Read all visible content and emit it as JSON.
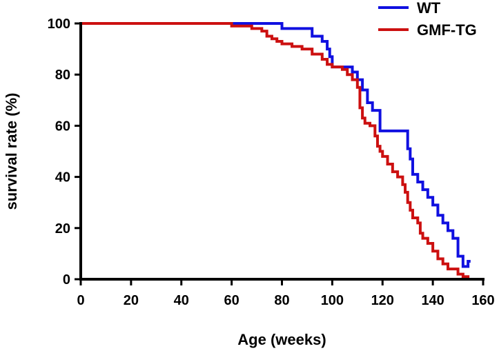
{
  "chart_data": {
    "type": "line",
    "subtype": "step",
    "xlabel": "Age (weeks)",
    "ylabel": "survival rate (%)",
    "xlim": [
      0,
      160
    ],
    "ylim": [
      0,
      100
    ],
    "xticks": [
      0,
      20,
      40,
      60,
      80,
      100,
      120,
      140,
      160
    ],
    "yticks": [
      0,
      20,
      40,
      60,
      80,
      100
    ],
    "grid": false,
    "legend_position": "top-right",
    "series": [
      {
        "name": "WT",
        "color": "#1010e0",
        "x": [
          0,
          70,
          80,
          82,
          92,
          96,
          98,
          99,
          100,
          105,
          108,
          110,
          112,
          114,
          116,
          119,
          130,
          131,
          132,
          134,
          136,
          138,
          140,
          142,
          144,
          146,
          148,
          150,
          152,
          154,
          155
        ],
        "y": [
          100,
          100,
          98,
          98,
          95,
          93,
          90,
          87,
          83,
          83,
          81,
          78,
          74,
          69,
          66,
          58,
          51,
          47,
          41,
          38,
          35,
          32,
          29,
          25,
          22,
          19,
          16,
          9,
          5,
          7,
          7
        ]
      },
      {
        "name": "GMF-TG",
        "color": "#cc1010",
        "x": [
          0,
          60,
          68,
          72,
          74,
          76,
          78,
          80,
          84,
          88,
          92,
          96,
          98,
          100,
          104,
          106,
          108,
          110,
          111,
          112,
          113,
          115,
          117,
          118,
          119,
          120,
          122,
          124,
          126,
          128,
          129,
          130,
          131,
          132,
          134,
          135,
          136,
          138,
          140,
          142,
          144,
          146,
          150,
          152,
          154,
          155
        ],
        "y": [
          100,
          99,
          98,
          97,
          95,
          94,
          93,
          92,
          91,
          90,
          88,
          86,
          84,
          83,
          82,
          80,
          78,
          75,
          67,
          63,
          61,
          60,
          56,
          52,
          50,
          48,
          45,
          42,
          40,
          37,
          34,
          30,
          27,
          24,
          22,
          18,
          16,
          14,
          11,
          8,
          6,
          4,
          2,
          1,
          0,
          0
        ]
      }
    ]
  }
}
